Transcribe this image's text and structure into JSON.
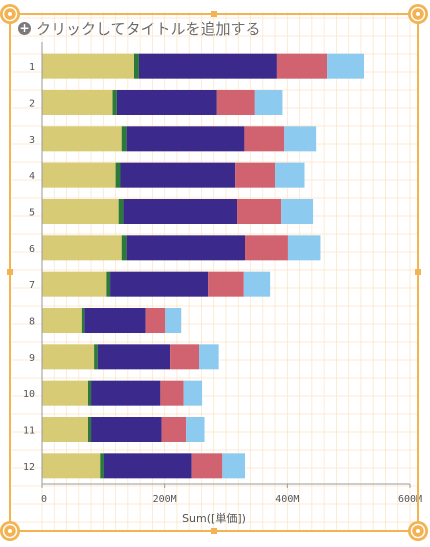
{
  "title": {
    "text": "クリックしてタイトルを追加する",
    "icon": "plus-circle-icon"
  },
  "colors": {
    "selection_frame": "#f3b352",
    "grid": "#fbe3c6",
    "series": [
      "#d8cb76",
      "#2b7a3a",
      "#3b2a8c",
      "#d1626f",
      "#8ccbef"
    ]
  },
  "chart_data": {
    "type": "bar",
    "orientation": "horizontal",
    "stacked": true,
    "categories": [
      "1",
      "2",
      "3",
      "4",
      "5",
      "6",
      "7",
      "8",
      "9",
      "10",
      "11",
      "12"
    ],
    "series": [
      {
        "values": [
          150,
          115,
          130,
          120,
          125,
          130,
          105,
          65,
          85,
          75,
          75,
          95
        ]
      },
      {
        "values": [
          8,
          7,
          8,
          8,
          8,
          8,
          6,
          4,
          6,
          5,
          5,
          6
        ]
      },
      {
        "values": [
          225,
          163,
          192,
          187,
          185,
          193,
          160,
          100,
          118,
          113,
          115,
          143
        ]
      },
      {
        "values": [
          82,
          62,
          65,
          65,
          72,
          70,
          58,
          32,
          47,
          38,
          40,
          50
        ]
      },
      {
        "values": [
          60,
          45,
          52,
          48,
          52,
          53,
          43,
          26,
          32,
          30,
          30,
          37
        ]
      }
    ],
    "xlabel": "Sum([単価])",
    "ylabel": "",
    "xlim": [
      0,
      600
    ],
    "xticks": [
      0,
      200,
      400,
      600
    ],
    "xtick_labels": [
      "0",
      "200M",
      "400M",
      "600M"
    ],
    "grid": true
  }
}
